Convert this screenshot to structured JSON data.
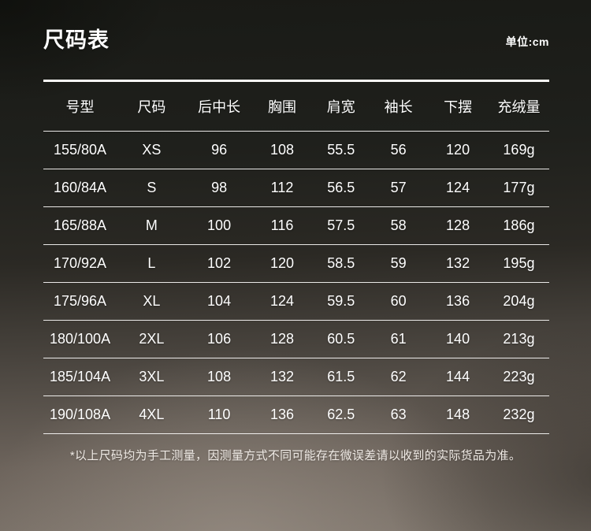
{
  "page": {
    "title": "尺码表",
    "unit_label": "单位:cm",
    "footnote": "*以上尺码均为手工测量，因测量方式不同可能存在微误差请以收到的实际货品为准。"
  },
  "chart_data": {
    "type": "table",
    "title": "尺码表",
    "unit": "cm",
    "columns": [
      "号型",
      "尺码",
      "后中长",
      "胸围",
      "肩宽",
      "袖长",
      "下摆",
      "充绒量"
    ],
    "rows": [
      [
        "155/80A",
        "XS",
        "96",
        "108",
        "55.5",
        "56",
        "120",
        "169g"
      ],
      [
        "160/84A",
        "S",
        "98",
        "112",
        "56.5",
        "57",
        "124",
        "177g"
      ],
      [
        "165/88A",
        "M",
        "100",
        "116",
        "57.5",
        "58",
        "128",
        "186g"
      ],
      [
        "170/92A",
        "L",
        "102",
        "120",
        "58.5",
        "59",
        "132",
        "195g"
      ],
      [
        "175/96A",
        "XL",
        "104",
        "124",
        "59.5",
        "60",
        "136",
        "204g"
      ],
      [
        "180/100A",
        "2XL",
        "106",
        "128",
        "60.5",
        "61",
        "140",
        "213g"
      ],
      [
        "185/104A",
        "3XL",
        "108",
        "132",
        "61.5",
        "62",
        "144",
        "223g"
      ],
      [
        "190/108A",
        "4XL",
        "110",
        "136",
        "62.5",
        "63",
        "148",
        "232g"
      ]
    ]
  },
  "colors": {
    "text": "#ffffff",
    "line": "#fbfaf8",
    "bg_top": "#191a16",
    "bg_bottom": "#7c736a"
  }
}
